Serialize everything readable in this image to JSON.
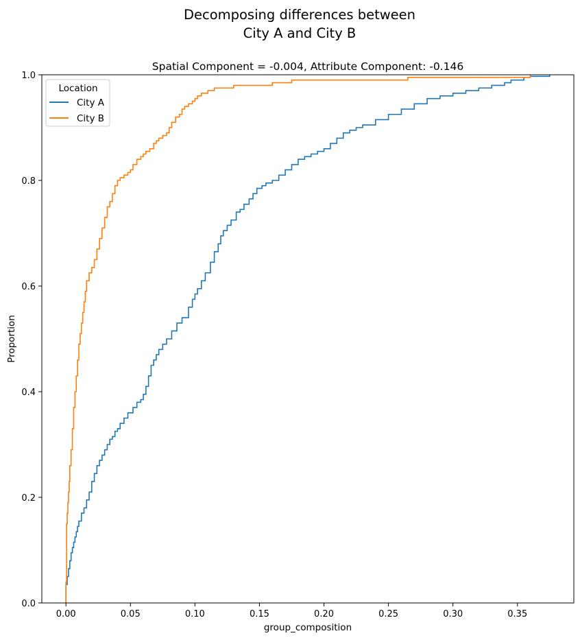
{
  "chart_data": {
    "type": "line",
    "suptitle_lines": [
      "Decomposing differences between",
      "City A and City B"
    ],
    "title": "Spatial Component = -0.004, Attribute Component: -0.146",
    "xlabel": "group_composition",
    "ylabel": "Proportion",
    "xlim": [
      -0.0187,
      0.3937
    ],
    "ylim": [
      0,
      1.0
    ],
    "xticks": [
      0.0,
      0.05,
      0.1,
      0.15,
      0.2,
      0.25,
      0.3,
      0.35
    ],
    "xtick_labels": [
      "0.00",
      "0.05",
      "0.10",
      "0.15",
      "0.20",
      "0.25",
      "0.30",
      "0.35"
    ],
    "yticks": [
      0.0,
      0.2,
      0.4,
      0.6,
      0.8,
      1.0
    ],
    "ytick_labels": [
      "0.0",
      "0.2",
      "0.4",
      "0.6",
      "0.8",
      "1.0"
    ],
    "grid": false,
    "step": true,
    "legend": {
      "title": "Location",
      "position": "upper-left"
    },
    "series": [
      {
        "name": "City A",
        "color": "#1f77b4",
        "x": [
          0.0,
          0.001,
          0.002,
          0.003,
          0.004,
          0.005,
          0.006,
          0.007,
          0.008,
          0.009,
          0.01,
          0.012,
          0.014,
          0.016,
          0.018,
          0.02,
          0.022,
          0.024,
          0.026,
          0.028,
          0.03,
          0.032,
          0.034,
          0.036,
          0.038,
          0.04,
          0.042,
          0.045,
          0.048,
          0.052,
          0.055,
          0.058,
          0.06,
          0.062,
          0.064,
          0.066,
          0.068,
          0.07,
          0.072,
          0.075,
          0.078,
          0.082,
          0.086,
          0.09,
          0.095,
          0.098,
          0.1,
          0.102,
          0.105,
          0.108,
          0.112,
          0.115,
          0.118,
          0.12,
          0.122,
          0.125,
          0.128,
          0.132,
          0.135,
          0.138,
          0.142,
          0.145,
          0.148,
          0.152,
          0.155,
          0.16,
          0.165,
          0.17,
          0.175,
          0.18,
          0.185,
          0.19,
          0.195,
          0.2,
          0.205,
          0.21,
          0.215,
          0.22,
          0.225,
          0.23,
          0.24,
          0.25,
          0.26,
          0.27,
          0.28,
          0.29,
          0.3,
          0.31,
          0.32,
          0.33,
          0.34,
          0.345,
          0.355,
          0.36,
          0.375
        ],
        "y": [
          0.035,
          0.05,
          0.065,
          0.08,
          0.095,
          0.105,
          0.115,
          0.125,
          0.135,
          0.145,
          0.155,
          0.17,
          0.18,
          0.195,
          0.21,
          0.23,
          0.245,
          0.26,
          0.27,
          0.28,
          0.29,
          0.3,
          0.31,
          0.315,
          0.325,
          0.33,
          0.34,
          0.35,
          0.36,
          0.37,
          0.38,
          0.385,
          0.395,
          0.41,
          0.43,
          0.45,
          0.46,
          0.47,
          0.48,
          0.49,
          0.5,
          0.515,
          0.53,
          0.54,
          0.56,
          0.575,
          0.585,
          0.595,
          0.61,
          0.625,
          0.645,
          0.665,
          0.68,
          0.695,
          0.705,
          0.715,
          0.725,
          0.74,
          0.745,
          0.755,
          0.765,
          0.775,
          0.785,
          0.79,
          0.795,
          0.8,
          0.81,
          0.82,
          0.83,
          0.84,
          0.845,
          0.85,
          0.855,
          0.86,
          0.87,
          0.88,
          0.89,
          0.895,
          0.9,
          0.905,
          0.915,
          0.925,
          0.935,
          0.945,
          0.955,
          0.96,
          0.965,
          0.97,
          0.975,
          0.98,
          0.985,
          0.99,
          0.995,
          0.997,
          1.0
        ]
      },
      {
        "name": "City B",
        "color": "#ff7f0e",
        "x": [
          0.0,
          0.0005,
          0.001,
          0.0015,
          0.002,
          0.0025,
          0.003,
          0.004,
          0.005,
          0.006,
          0.007,
          0.008,
          0.009,
          0.01,
          0.011,
          0.012,
          0.013,
          0.014,
          0.015,
          0.016,
          0.018,
          0.02,
          0.022,
          0.024,
          0.026,
          0.028,
          0.03,
          0.032,
          0.034,
          0.036,
          0.038,
          0.04,
          0.042,
          0.045,
          0.048,
          0.05,
          0.052,
          0.055,
          0.058,
          0.06,
          0.062,
          0.065,
          0.068,
          0.07,
          0.072,
          0.075,
          0.078,
          0.08,
          0.082,
          0.085,
          0.088,
          0.09,
          0.092,
          0.095,
          0.098,
          0.1,
          0.102,
          0.105,
          0.11,
          0.115,
          0.13,
          0.16,
          0.175,
          0.265,
          0.36
        ],
        "y": [
          0.04,
          0.15,
          0.17,
          0.19,
          0.21,
          0.23,
          0.26,
          0.29,
          0.33,
          0.37,
          0.4,
          0.43,
          0.46,
          0.49,
          0.51,
          0.53,
          0.55,
          0.57,
          0.59,
          0.61,
          0.625,
          0.635,
          0.65,
          0.67,
          0.69,
          0.71,
          0.73,
          0.75,
          0.76,
          0.775,
          0.79,
          0.8,
          0.805,
          0.81,
          0.815,
          0.82,
          0.83,
          0.84,
          0.845,
          0.85,
          0.855,
          0.86,
          0.87,
          0.875,
          0.88,
          0.885,
          0.89,
          0.9,
          0.91,
          0.92,
          0.925,
          0.935,
          0.94,
          0.945,
          0.95,
          0.955,
          0.96,
          0.965,
          0.97,
          0.975,
          0.98,
          0.985,
          0.99,
          0.995,
          1.0
        ]
      }
    ]
  }
}
